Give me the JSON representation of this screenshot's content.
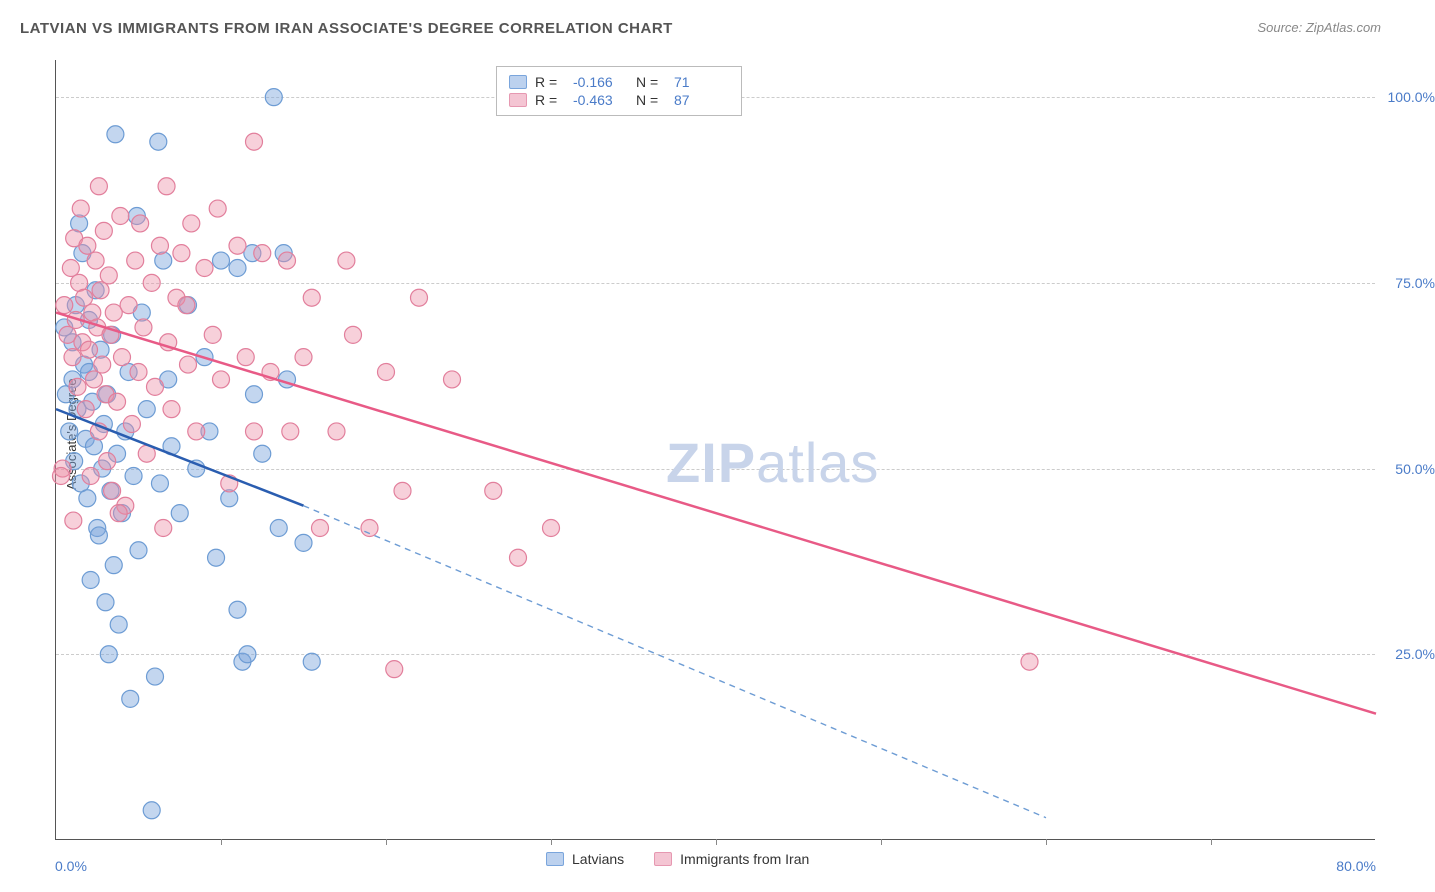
{
  "title": "LATVIAN VS IMMIGRANTS FROM IRAN ASSOCIATE'S DEGREE CORRELATION CHART",
  "source_label": "Source: ZipAtlas.com",
  "ylabel": "Associate's Degree",
  "watermark_zip": "ZIP",
  "watermark_atlas": "atlas",
  "chart": {
    "type": "scatter_with_regression",
    "xlim": [
      0,
      80
    ],
    "ylim": [
      0,
      105
    ],
    "x_tick_labels": [
      "0.0%",
      "80.0%"
    ],
    "y_ticks": [
      25,
      50,
      75,
      100
    ],
    "y_tick_labels": [
      "25.0%",
      "50.0%",
      "75.0%",
      "100.0%"
    ],
    "x_minor_step": 10,
    "background": "#ffffff",
    "grid_color": "#cccccc",
    "axis_color": "#555555",
    "tick_label_color": "#4a7bc8",
    "series": [
      {
        "name": "Latvians",
        "color_fill": "rgba(122,165,220,0.45)",
        "color_stroke": "#6d9cd4",
        "line_color": "#2a5db0",
        "line_dash_color": "#6d9cd4",
        "swatch_fill": "#bcd1ee",
        "swatch_border": "#7aa5dc",
        "R": "-0.166",
        "N": "71",
        "regression": {
          "x1": 0,
          "y1": 58,
          "x2_solid": 15,
          "y2_solid": 45,
          "x2_dash": 60,
          "y2_dash": 3
        },
        "points": [
          [
            0.5,
            69
          ],
          [
            0.6,
            60
          ],
          [
            0.8,
            55
          ],
          [
            1,
            67
          ],
          [
            1,
            62
          ],
          [
            1.1,
            51
          ],
          [
            1.2,
            72
          ],
          [
            1.3,
            58
          ],
          [
            1.4,
            83
          ],
          [
            1.5,
            48
          ],
          [
            1.6,
            79
          ],
          [
            1.7,
            64
          ],
          [
            1.8,
            54
          ],
          [
            1.9,
            46
          ],
          [
            2,
            70
          ],
          [
            2,
            63
          ],
          [
            2.1,
            35
          ],
          [
            2.2,
            59
          ],
          [
            2.3,
            53
          ],
          [
            2.4,
            74
          ],
          [
            2.5,
            42
          ],
          [
            2.6,
            41
          ],
          [
            2.7,
            66
          ],
          [
            2.8,
            50
          ],
          [
            2.9,
            56
          ],
          [
            3,
            32
          ],
          [
            3.1,
            60
          ],
          [
            3.2,
            25
          ],
          [
            3.3,
            47
          ],
          [
            3.4,
            68
          ],
          [
            3.5,
            37
          ],
          [
            3.7,
            52
          ],
          [
            3.8,
            29
          ],
          [
            4,
            44
          ],
          [
            4.2,
            55
          ],
          [
            4.4,
            63
          ],
          [
            4.5,
            19
          ],
          [
            4.7,
            49
          ],
          [
            5,
            39
          ],
          [
            5.2,
            71
          ],
          [
            5.5,
            58
          ],
          [
            5.8,
            4
          ],
          [
            6,
            22
          ],
          [
            6.3,
            48
          ],
          [
            6.5,
            78
          ],
          [
            6.8,
            62
          ],
          [
            7,
            53
          ],
          [
            7.5,
            44
          ],
          [
            8,
            72
          ],
          [
            8.5,
            50
          ],
          [
            9,
            65
          ],
          [
            9.3,
            55
          ],
          [
            9.7,
            38
          ],
          [
            10,
            78
          ],
          [
            10.5,
            46
          ],
          [
            11,
            31
          ],
          [
            11.3,
            24
          ],
          [
            11.6,
            25
          ],
          [
            11.9,
            79
          ],
          [
            12,
            60
          ],
          [
            12.5,
            52
          ],
          [
            3.6,
            95
          ],
          [
            4.9,
            84
          ],
          [
            13.2,
            100
          ],
          [
            13.5,
            42
          ],
          [
            14,
            62
          ],
          [
            15,
            40
          ],
          [
            15.5,
            24
          ],
          [
            11,
            77
          ],
          [
            13.8,
            79
          ],
          [
            6.2,
            94
          ]
        ]
      },
      {
        "name": "Immigrants from Iran",
        "color_fill": "rgba(236,142,168,0.42)",
        "color_stroke": "#e27f9c",
        "line_color": "#e85a86",
        "swatch_fill": "#f4c5d3",
        "swatch_border": "#e698b1",
        "R": "-0.463",
        "N": "87",
        "regression": {
          "x1": 0,
          "y1": 71,
          "x2_solid": 80,
          "y2_solid": 17
        },
        "points": [
          [
            0.5,
            72
          ],
          [
            0.7,
            68
          ],
          [
            0.9,
            77
          ],
          [
            1,
            65
          ],
          [
            1.1,
            81
          ],
          [
            1.2,
            70
          ],
          [
            1.3,
            61
          ],
          [
            1.4,
            75
          ],
          [
            1.5,
            85
          ],
          [
            1.6,
            67
          ],
          [
            1.7,
            73
          ],
          [
            1.8,
            58
          ],
          [
            1.9,
            80
          ],
          [
            2,
            66
          ],
          [
            2.1,
            49
          ],
          [
            2.2,
            71
          ],
          [
            2.3,
            62
          ],
          [
            2.4,
            78
          ],
          [
            2.5,
            69
          ],
          [
            2.6,
            55
          ],
          [
            2.7,
            74
          ],
          [
            2.8,
            64
          ],
          [
            2.9,
            82
          ],
          [
            3,
            60
          ],
          [
            3.1,
            51
          ],
          [
            3.2,
            76
          ],
          [
            3.3,
            68
          ],
          [
            3.4,
            47
          ],
          [
            3.5,
            71
          ],
          [
            3.7,
            59
          ],
          [
            3.9,
            84
          ],
          [
            4,
            65
          ],
          [
            4.2,
            45
          ],
          [
            4.4,
            72
          ],
          [
            4.6,
            56
          ],
          [
            4.8,
            78
          ],
          [
            5,
            63
          ],
          [
            5.3,
            69
          ],
          [
            5.5,
            52
          ],
          [
            5.8,
            75
          ],
          [
            6,
            61
          ],
          [
            6.3,
            80
          ],
          [
            6.5,
            42
          ],
          [
            6.8,
            67
          ],
          [
            7,
            58
          ],
          [
            7.3,
            73
          ],
          [
            7.6,
            79
          ],
          [
            8,
            64
          ],
          [
            8.5,
            55
          ],
          [
            9,
            77
          ],
          [
            9.5,
            68
          ],
          [
            10,
            62
          ],
          [
            10.5,
            48
          ],
          [
            11,
            80
          ],
          [
            11.5,
            65
          ],
          [
            12,
            55
          ],
          [
            12.5,
            79
          ],
          [
            13,
            63
          ],
          [
            14,
            78
          ],
          [
            15,
            65
          ],
          [
            15.5,
            73
          ],
          [
            17,
            55
          ],
          [
            18,
            68
          ],
          [
            19,
            42
          ],
          [
            20,
            63
          ],
          [
            20.5,
            23
          ],
          [
            21,
            47
          ],
          [
            22,
            73
          ],
          [
            24,
            62
          ],
          [
            26.5,
            47
          ],
          [
            28,
            38
          ],
          [
            30,
            42
          ],
          [
            12,
            94
          ],
          [
            8.2,
            83
          ],
          [
            9.8,
            85
          ],
          [
            6.7,
            88
          ],
          [
            16,
            42
          ],
          [
            59,
            24
          ],
          [
            2.6,
            88
          ],
          [
            3.8,
            44
          ],
          [
            5.1,
            83
          ],
          [
            7.9,
            72
          ],
          [
            14.2,
            55
          ],
          [
            17.6,
            78
          ],
          [
            0.4,
            50
          ],
          [
            1.05,
            43
          ],
          [
            0.3,
            49
          ]
        ]
      }
    ],
    "marker_radius": 8.5,
    "marker_stroke_width": 1.2,
    "line_width": 2.5
  },
  "legend_top": {
    "r_label": "R =",
    "n_label": "N ="
  },
  "legend_bottom": {
    "s1": "Latvians",
    "s2": "Immigrants from Iran"
  }
}
